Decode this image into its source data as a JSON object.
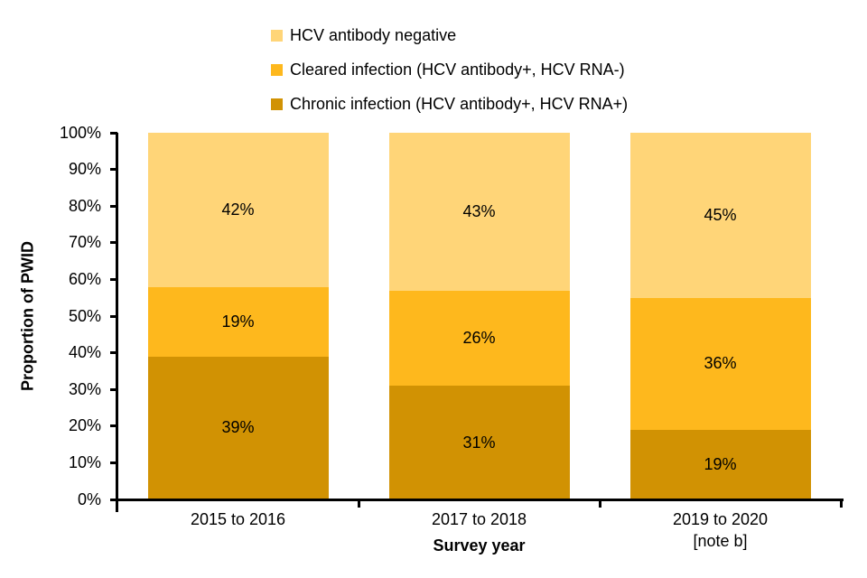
{
  "chart_data": {
    "type": "bar",
    "stacked": true,
    "title": "",
    "xlabel": "Survey year",
    "ylabel": "Proportion of PWID",
    "ylim": [
      0,
      100
    ],
    "ytick_step": 10,
    "ytick_format": "{v}%",
    "data_label_format": "{v}%",
    "grid": false,
    "legend_position": "top",
    "categories": [
      {
        "lines": [
          "2015 to 2016"
        ]
      },
      {
        "lines": [
          "2017 to 2018"
        ]
      },
      {
        "lines": [
          "2019 to 2020",
          "[note b]"
        ]
      }
    ],
    "series": [
      {
        "name": "Chronic infection (HCV antibody+, HCV RNA+)",
        "color": "#D19203",
        "values": [
          39,
          31,
          19
        ]
      },
      {
        "name": "Cleared infection (HCV antibody+, HCV RNA-)",
        "color": "#FEB81D",
        "values": [
          19,
          26,
          36
        ]
      },
      {
        "name": "HCV antibody negative",
        "color": "#FFD578",
        "values": [
          42,
          43,
          45
        ]
      }
    ]
  },
  "colors": {
    "axis": "#000000",
    "text": "#000000",
    "background": "#FFFFFF"
  }
}
